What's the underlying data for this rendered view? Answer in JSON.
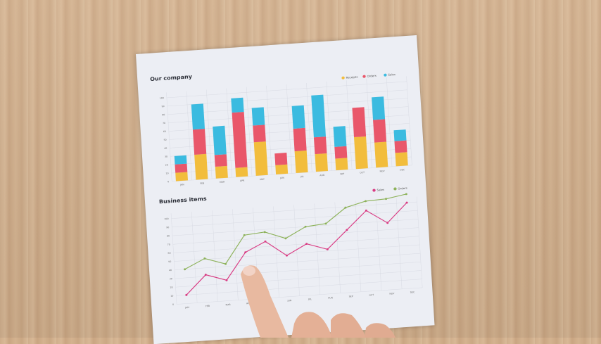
{
  "chart_data": [
    {
      "type": "bar",
      "stacked": true,
      "title": "Our company",
      "categories": [
        "JAN",
        "FEB",
        "MAR",
        "APR",
        "MAY",
        "JUN",
        "JUL",
        "AUG",
        "SEP",
        "OCT",
        "NOV",
        "DEC"
      ],
      "yticks": [
        "0",
        "10",
        "20",
        "30",
        "40",
        "50",
        "60",
        "70",
        "80",
        "90",
        "100"
      ],
      "ylim": [
        0,
        105
      ],
      "grid": true,
      "legend": "top-right",
      "series": [
        {
          "name": "Receipts",
          "color": "#f2bd3c",
          "values": [
            10,
            30,
            14,
            11,
            40,
            11,
            26,
            21,
            14,
            38,
            30,
            16
          ]
        },
        {
          "name": "Orders",
          "color": "#e9576a",
          "values": [
            10,
            30,
            14,
            66,
            20,
            14,
            27,
            20,
            14,
            35,
            27,
            14
          ]
        },
        {
          "name": "Sales",
          "color": "#3bbbe0",
          "values": [
            10,
            30,
            34,
            17,
            21,
            0,
            27,
            50,
            24,
            0,
            27,
            13
          ]
        }
      ]
    },
    {
      "type": "line",
      "title": "Business items",
      "categories": [
        "JAN",
        "FEB",
        "MAR",
        "APR",
        "MAY",
        "JUN",
        "JUL",
        "AUG",
        "SEP",
        "OCT",
        "NOV",
        "DEC"
      ],
      "yticks": [
        "0",
        "10",
        "20",
        "30",
        "40",
        "50",
        "60",
        "70",
        "80",
        "90",
        "100"
      ],
      "ylim": [
        0,
        110
      ],
      "grid": true,
      "legend": "top-right",
      "series": [
        {
          "name": "Sales",
          "color": "#d93b83",
          "values": [
            10,
            32,
            24,
            55,
            66,
            48,
            60,
            52,
            73,
            94,
            78,
            100
          ]
        },
        {
          "name": "Orders",
          "color": "#8db25a",
          "values": [
            40,
            51,
            43,
            75,
            77,
            68,
            80,
            82,
            99,
            105,
            106,
            110
          ]
        }
      ]
    }
  ]
}
